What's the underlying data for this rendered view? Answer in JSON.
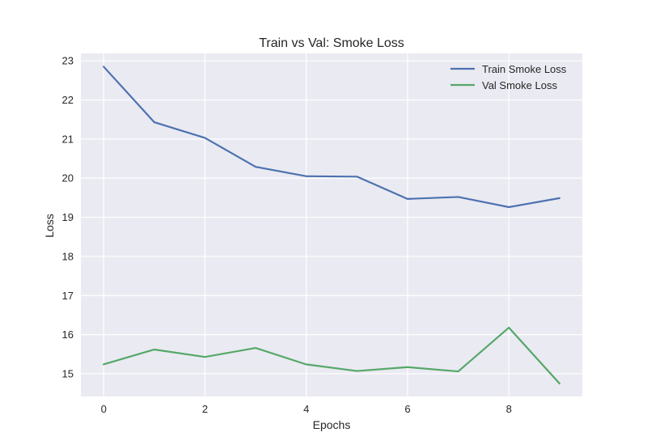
{
  "chart_data": {
    "type": "line",
    "title": "Train vs Val: Smoke Loss",
    "xlabel": "Epochs",
    "ylabel": "Loss",
    "x": [
      0,
      1,
      2,
      3,
      4,
      5,
      6,
      7,
      8,
      9
    ],
    "xlim": [
      -0.45,
      9.45
    ],
    "ylim": [
      14.42,
      23.19
    ],
    "xticks": [
      0,
      2,
      4,
      6,
      8
    ],
    "yticks": [
      15,
      16,
      17,
      18,
      19,
      20,
      21,
      22,
      23
    ],
    "grid": true,
    "legend_position": "top-right",
    "series": [
      {
        "name": "Train Smoke Loss",
        "color": "#4c72b0",
        "values": [
          22.85,
          21.43,
          21.03,
          20.29,
          20.05,
          20.04,
          19.47,
          19.52,
          19.26,
          19.49
        ]
      },
      {
        "name": "Val Smoke Loss",
        "color": "#55a868",
        "values": [
          15.24,
          15.62,
          15.43,
          15.66,
          15.24,
          15.07,
          15.17,
          15.06,
          16.18,
          14.75
        ]
      }
    ]
  }
}
